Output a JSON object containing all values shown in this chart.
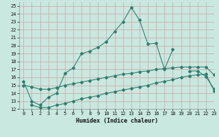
{
  "xlabel": "Humidex (Indice chaleur)",
  "xlim": [
    -0.5,
    23
  ],
  "ylim": [
    12,
    25.5
  ],
  "yticks": [
    12,
    13,
    14,
    15,
    16,
    17,
    18,
    19,
    20,
    21,
    22,
    23,
    24,
    25
  ],
  "xticks": [
    0,
    1,
    2,
    3,
    4,
    5,
    6,
    7,
    8,
    9,
    10,
    11,
    12,
    13,
    14,
    15,
    16,
    17,
    18,
    19,
    20,
    21,
    22,
    23
  ],
  "background_color": "#c8e8e0",
  "grid_color": "#b8d8d0",
  "line_color": "#2e7d6e",
  "lines": [
    {
      "x": [
        0,
        1,
        2,
        3,
        4,
        5,
        6,
        7,
        8,
        9,
        10,
        11,
        12,
        13,
        14,
        15,
        16,
        17,
        18
      ],
      "y": [
        15.5,
        13.0,
        12.5,
        13.5,
        14.0,
        16.5,
        17.2,
        19.0,
        19.3,
        19.8,
        20.5,
        21.8,
        23.0,
        24.8,
        23.2,
        20.2,
        20.3,
        17.0,
        19.5
      ]
    },
    {
      "x": [
        20,
        21,
        22,
        23
      ],
      "y": [
        16.8,
        16.8,
        16.1,
        14.5
      ]
    },
    {
      "x": [
        0,
        1,
        2,
        3,
        4,
        5,
        6,
        7,
        8,
        9,
        10,
        11,
        12,
        13,
        14,
        15,
        16,
        17,
        18,
        19,
        20,
        21,
        22,
        23
      ],
      "y": [
        15.0,
        14.8,
        14.5,
        14.5,
        14.7,
        15.0,
        15.2,
        15.4,
        15.6,
        15.8,
        16.0,
        16.2,
        16.4,
        16.5,
        16.7,
        16.8,
        17.0,
        17.1,
        17.2,
        17.3,
        17.3,
        17.3,
        17.3,
        16.3
      ]
    },
    {
      "x": [
        1,
        2,
        3,
        4,
        5,
        6,
        7,
        8,
        9,
        10,
        11,
        12,
        13,
        14,
        15,
        16,
        17,
        18,
        19,
        20,
        21,
        22,
        23
      ],
      "y": [
        12.5,
        12.2,
        12.2,
        12.5,
        12.7,
        13.0,
        13.3,
        13.5,
        13.7,
        14.0,
        14.2,
        14.4,
        14.6,
        14.8,
        15.0,
        15.3,
        15.5,
        15.7,
        16.0,
        16.2,
        16.3,
        16.4,
        14.3
      ]
    }
  ]
}
